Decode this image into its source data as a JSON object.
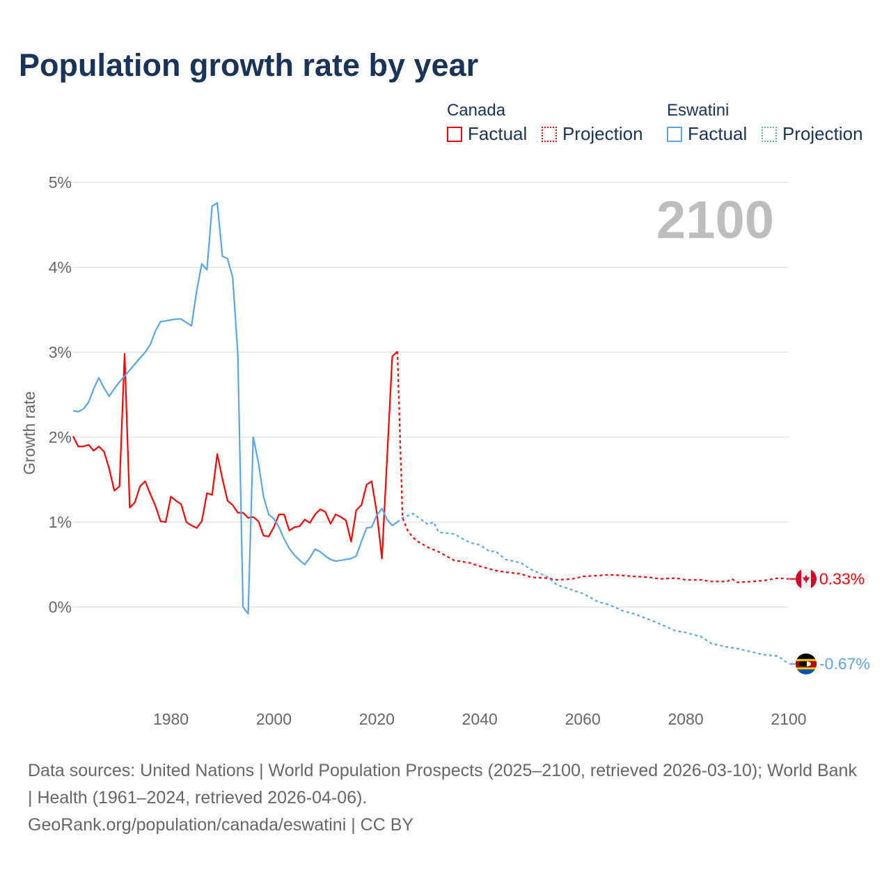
{
  "title": "Population growth rate by year",
  "legend": {
    "groups": [
      {
        "name": "Canada",
        "factual_label": "Factual",
        "projection_label": "Projection",
        "color": "#ff0000"
      },
      {
        "name": "Eswatini",
        "factual_label": "Factual",
        "projection_label": "Projection",
        "color": "#5aa5ea"
      }
    ]
  },
  "year_watermark": "2100",
  "footer": {
    "sources": "Data sources: United Nations | World Population Prospects (2025–2100, retrieved 2026-03-10); World Bank | Health (1961–2024, retrieved 2026-04-06).",
    "credit": "GeoRank.org/population/canada/eswatini | CC BY"
  },
  "chart_data": {
    "type": "line",
    "title": "Population growth rate by year",
    "xlabel": "",
    "ylabel": "Growth rate",
    "xlim": [
      1961,
      2100
    ],
    "ylim": [
      -1,
      5
    ],
    "x_ticks": [
      "1980",
      "2000",
      "2020",
      "2040",
      "2060",
      "2080",
      "2100"
    ],
    "x_tick_values": [
      1980,
      2000,
      2020,
      2040,
      2060,
      2080,
      2100
    ],
    "y_ticks": [
      "0%",
      "1%",
      "2%",
      "3%",
      "4%",
      "5%"
    ],
    "y_tick_values": [
      0,
      1,
      2,
      3,
      4,
      5
    ],
    "grid": true,
    "legend_placement": "top-right",
    "series": [
      {
        "name": "Canada Factual",
        "country": "Canada",
        "style": "solid",
        "color": "#ff0000",
        "x": [
          1961,
          1962,
          1963,
          1964,
          1965,
          1966,
          1967,
          1968,
          1969,
          1970,
          1971,
          1972,
          1973,
          1974,
          1975,
          1976,
          1977,
          1978,
          1979,
          1980,
          1981,
          1982,
          1983,
          1984,
          1985,
          1986,
          1987,
          1988,
          1989,
          1990,
          1991,
          1992,
          1993,
          1994,
          1995,
          1996,
          1997,
          1998,
          1999,
          2000,
          2001,
          2002,
          2003,
          2004,
          2005,
          2006,
          2007,
          2008,
          2009,
          2010,
          2011,
          2012,
          2013,
          2014,
          2015,
          2016,
          2017,
          2018,
          2019,
          2020,
          2021,
          2022,
          2023,
          2024
        ],
        "y": [
          2.01,
          1.89,
          1.89,
          1.91,
          1.84,
          1.89,
          1.83,
          1.63,
          1.37,
          1.42,
          2.98,
          1.17,
          1.23,
          1.42,
          1.48,
          1.33,
          1.19,
          1.01,
          1.0,
          1.3,
          1.25,
          1.21,
          1.0,
          0.96,
          0.93,
          1.01,
          1.34,
          1.32,
          1.8,
          1.51,
          1.25,
          1.2,
          1.11,
          1.11,
          1.05,
          1.06,
          1.01,
          0.84,
          0.83,
          0.94,
          1.09,
          1.09,
          0.9,
          0.94,
          0.95,
          1.03,
          0.99,
          1.09,
          1.15,
          1.12,
          0.98,
          1.09,
          1.06,
          1.02,
          0.77,
          1.14,
          1.2,
          1.44,
          1.48,
          1.11,
          0.57,
          1.76,
          2.95,
          3.01
        ]
      },
      {
        "name": "Canada Projection",
        "country": "Canada",
        "style": "dotted",
        "color": "#ff0000",
        "x": [
          2024,
          2025,
          2026,
          2027,
          2028,
          2030,
          2032,
          2035,
          2038,
          2040,
          2043,
          2045,
          2048,
          2050,
          2053,
          2055,
          2058,
          2060,
          2063,
          2065,
          2068,
          2070,
          2073,
          2075,
          2078,
          2080,
          2083,
          2085,
          2088,
          2089,
          2090,
          2093,
          2095,
          2098,
          2100
        ],
        "y": [
          3.01,
          1.05,
          0.9,
          0.82,
          0.77,
          0.7,
          0.65,
          0.55,
          0.52,
          0.48,
          0.43,
          0.41,
          0.39,
          0.35,
          0.34,
          0.32,
          0.33,
          0.36,
          0.37,
          0.38,
          0.37,
          0.36,
          0.35,
          0.33,
          0.34,
          0.32,
          0.32,
          0.3,
          0.3,
          0.33,
          0.29,
          0.3,
          0.31,
          0.34,
          0.33
        ]
      },
      {
        "name": "Eswatini Factual",
        "country": "Eswatini",
        "style": "solid",
        "color": "#5aa5ea",
        "x": [
          1961,
          1962,
          1963,
          1964,
          1965,
          1966,
          1967,
          1968,
          1969,
          1970,
          1971,
          1972,
          1973,
          1974,
          1975,
          1976,
          1977,
          1978,
          1979,
          1980,
          1981,
          1982,
          1983,
          1984,
          1985,
          1986,
          1987,
          1988,
          1989,
          1990,
          1991,
          1992,
          1993,
          1994,
          1995,
          1996,
          1997,
          1998,
          1999,
          2000,
          2001,
          2002,
          2003,
          2004,
          2005,
          2006,
          2007,
          2008,
          2009,
          2010,
          2011,
          2012,
          2013,
          2014,
          2015,
          2016,
          2017,
          2018,
          2019,
          2020,
          2021,
          2022,
          2023,
          2024
        ],
        "y": [
          2.31,
          2.3,
          2.33,
          2.41,
          2.57,
          2.7,
          2.58,
          2.48,
          2.57,
          2.65,
          2.72,
          2.79,
          2.86,
          2.93,
          3.0,
          3.09,
          3.25,
          3.36,
          3.37,
          3.38,
          3.39,
          3.39,
          3.35,
          3.31,
          3.72,
          4.04,
          3.97,
          4.72,
          4.76,
          4.13,
          4.1,
          3.88,
          2.97,
          0.0,
          -0.08,
          2.0,
          1.7,
          1.3,
          1.09,
          1.04,
          0.94,
          0.8,
          0.69,
          0.61,
          0.55,
          0.5,
          0.58,
          0.68,
          0.65,
          0.6,
          0.56,
          0.54,
          0.55,
          0.56,
          0.57,
          0.6,
          0.77,
          0.93,
          0.94,
          1.08,
          1.16,
          1.03,
          0.96,
          1.0
        ]
      },
      {
        "name": "Eswatini Projection",
        "country": "Eswatini",
        "style": "dotted",
        "color": "#5aa5ea",
        "x": [
          2024,
          2025,
          2027,
          2030,
          2031,
          2032,
          2035,
          2038,
          2040,
          2042,
          2043,
          2045,
          2048,
          2050,
          2053,
          2055,
          2058,
          2060,
          2063,
          2065,
          2068,
          2070,
          2073,
          2075,
          2078,
          2080,
          2083,
          2085,
          2088,
          2090,
          2093,
          2095,
          2098,
          2100
        ],
        "y": [
          1.0,
          1.05,
          1.1,
          0.97,
          1.0,
          0.88,
          0.86,
          0.76,
          0.73,
          0.65,
          0.66,
          0.56,
          0.52,
          0.44,
          0.36,
          0.26,
          0.2,
          0.16,
          0.06,
          0.03,
          -0.05,
          -0.08,
          -0.15,
          -0.2,
          -0.28,
          -0.3,
          -0.35,
          -0.43,
          -0.47,
          -0.49,
          -0.53,
          -0.56,
          -0.58,
          -0.67
        ]
      }
    ],
    "end_labels": [
      {
        "country": "Canada",
        "flag": "canada-flag",
        "value": 0.33,
        "text": "0.33%",
        "color": "#ff0000"
      },
      {
        "country": "Eswatini",
        "flag": "eswatini-flag",
        "value": -0.67,
        "text": "-0.67%",
        "color": "#5aa5ea"
      }
    ]
  }
}
